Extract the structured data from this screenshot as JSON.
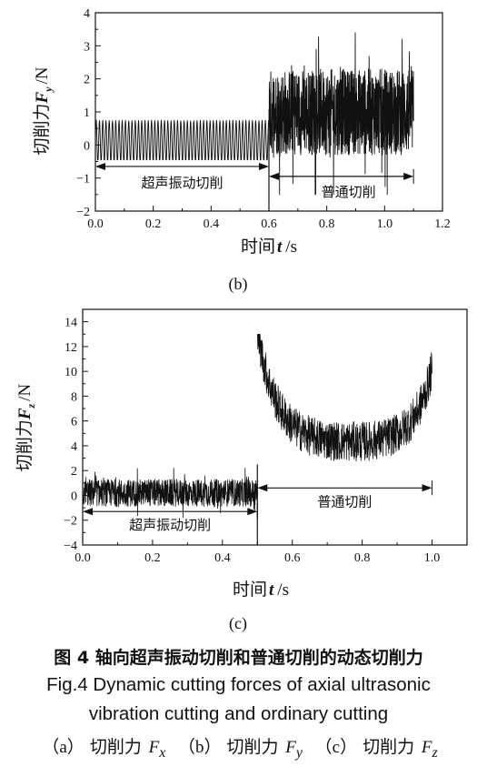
{
  "chart_data": [
    {
      "panel": "(b)",
      "type": "line",
      "ylabel": "切削力F_y /N",
      "ylabel_text": "切削力",
      "ylabel_var": "F",
      "ylabel_sub": "y",
      "ylabel_unit": "/N",
      "xlabel_text": "时间",
      "xlabel_var": "t",
      "xlabel_unit": "/s",
      "xlim": [
        0,
        1.2
      ],
      "ylim": [
        -2,
        4
      ],
      "x_ticks": [
        "0.0",
        "0.2",
        "0.4",
        "0.6",
        "0.8",
        "1.0",
        "1.2"
      ],
      "y_ticks": [
        "-2",
        "-1",
        "0",
        "1",
        "2",
        "3",
        "4"
      ],
      "segments": [
        {
          "label": "超声振动切削",
          "x_range": [
            0,
            0.6
          ],
          "mean": 0.1,
          "min": -0.45,
          "max": 0.75
        },
        {
          "label": "普通切削",
          "x_range": [
            0.6,
            1.1
          ],
          "mean": 1.0,
          "min": -1.5,
          "max": 3.4
        }
      ],
      "divider_x": 0.6
    },
    {
      "panel": "(c)",
      "type": "line",
      "ylabel_text": "切削力",
      "ylabel_var": "F",
      "ylabel_sub": "z",
      "ylabel_unit": "/N",
      "xlabel_text": "时间",
      "xlabel_var": "t",
      "xlabel_unit": "/s",
      "xlim": [
        0,
        1.1
      ],
      "ylim": [
        -4,
        15
      ],
      "x_ticks": [
        "0.0",
        "0.2",
        "0.4",
        "0.6",
        "0.8",
        "1.0"
      ],
      "y_ticks": [
        "-4",
        "-2",
        "0",
        "2",
        "4",
        "6",
        "8",
        "10",
        "12",
        "14"
      ],
      "segments": [
        {
          "label": "超声振动切削",
          "x_range": [
            0,
            0.5
          ],
          "mean": 0.2,
          "min": -1.8,
          "max": 2.2
        },
        {
          "label": "普通切削",
          "x_range": [
            0.5,
            1.0
          ],
          "mean": 5.0,
          "min": 1.0,
          "max": 13.0
        }
      ],
      "divider_x": 0.5
    }
  ],
  "caption": {
    "cn": "图 4  轴向超声振动切削和普通切削的动态切削力",
    "en_line1": "Fig.4  Dynamic cutting forces of axial ultrasonic",
    "en_line2": "vibration cutting and ordinary cutting",
    "sub": [
      {
        "tag": "（a）",
        "text": "切削力 ",
        "var": "F",
        "sub": "x"
      },
      {
        "tag": "（b）",
        "text": "切削力 ",
        "var": "F",
        "sub": "y"
      },
      {
        "tag": "（c）",
        "text": "切削力 ",
        "var": "F",
        "sub": "z"
      }
    ]
  }
}
